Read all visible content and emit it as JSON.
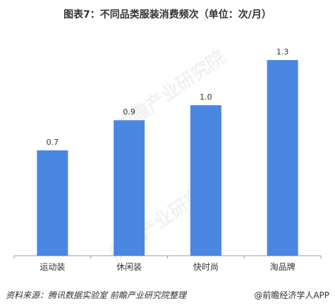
{
  "title": "图表7：不同品类服装消费频次（单位：次/月）",
  "source": "资料来源：腾讯数据实验室  前瞻产业研究院整理",
  "brand": "@前瞻经济学人APP",
  "watermark": "前瞻产业研究院",
  "colors": {
    "bar": "#4a87e3",
    "axis": "#999999",
    "text": "#333333"
  },
  "chart_data": {
    "type": "bar",
    "title": "图表7：不同品类服装消费频次（单位：次/月）",
    "categories": [
      "运动装",
      "休闲装",
      "快时尚",
      "淘品牌"
    ],
    "values": [
      0.7,
      0.9,
      1.0,
      1.3
    ],
    "value_labels": [
      "0.7",
      "0.9",
      "1.0",
      "1.3"
    ],
    "xlabel": "",
    "ylabel": "",
    "ylim": [
      0,
      1.4
    ],
    "grid": false,
    "legend": "none"
  }
}
